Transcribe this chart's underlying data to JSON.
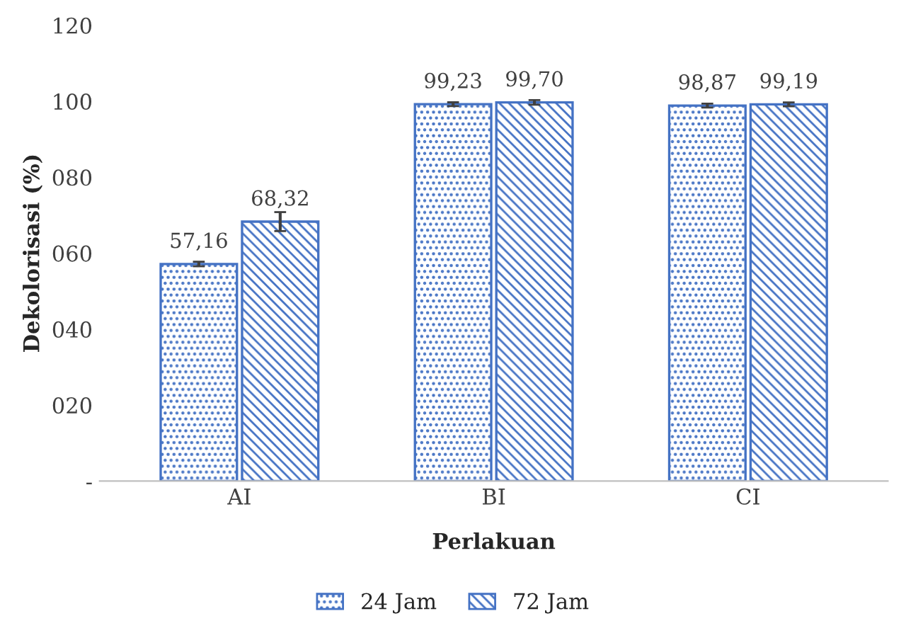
{
  "chart_data": {
    "type": "bar",
    "xlabel": "Perlakuan",
    "ylabel": "Dekolorisasi (%)",
    "categories": [
      "AI",
      "BI",
      "CI"
    ],
    "series": [
      {
        "name": "24 Jam",
        "color": "#4472c4",
        "values": [
          57.16,
          99.23,
          98.87
        ],
        "errors": [
          0.6,
          0.5,
          0.5
        ],
        "value_labels": [
          "57,16",
          "99,23",
          "98,87"
        ]
      },
      {
        "name": "72 Jam",
        "color": "#4472c4",
        "values": [
          68.32,
          99.7,
          99.19
        ],
        "errors": [
          2.5,
          0.6,
          0.5
        ],
        "value_labels": [
          "68,32",
          "99,70",
          "99,19"
        ]
      }
    ],
    "ylim": [
      0,
      120
    ],
    "yticks": [
      {
        "value": 0,
        "label": "-"
      },
      {
        "value": 20,
        "label": "020"
      },
      {
        "value": 40,
        "label": "040"
      },
      {
        "value": 60,
        "label": "060"
      },
      {
        "value": 80,
        "label": "080"
      },
      100,
      120
    ],
    "grid": false,
    "legend": "bottom"
  }
}
